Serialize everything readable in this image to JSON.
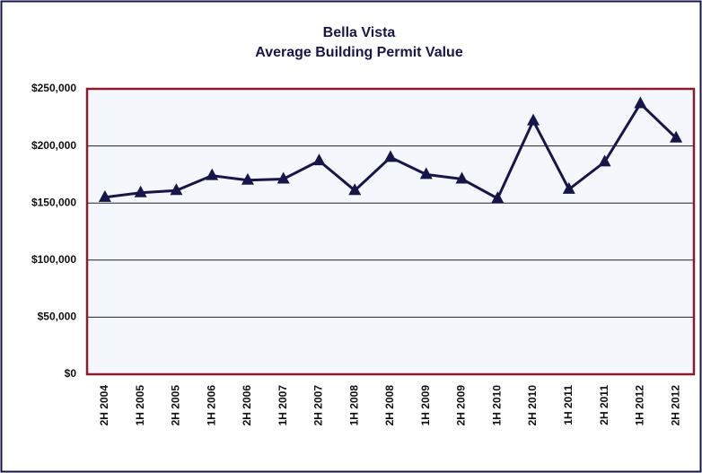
{
  "chart_data": {
    "type": "line",
    "title": [
      "Bella Vista",
      "Average Building Permit Value"
    ],
    "categories": [
      "2H 2004",
      "1H 2005",
      "2H 2005",
      "1H 2006",
      "2H 2006",
      "1H 2007",
      "2H 2007",
      "1H 2008",
      "2H 2008",
      "1H 2009",
      "2H 2009",
      "1H 2010",
      "2H 2010",
      "1H 2011",
      "2H 2011",
      "1H 2012",
      "2H 2012"
    ],
    "series": [
      {
        "name": "Average Building Permit Value",
        "color": "#16164a",
        "values": [
          155000,
          159000,
          161000,
          174000,
          170000,
          171000,
          187000,
          161000,
          190000,
          175000,
          171000,
          154000,
          222000,
          162000,
          186000,
          237000,
          207000
        ]
      }
    ],
    "ylim": [
      0,
      250000
    ],
    "yticks": [
      {
        "value": 0,
        "label": "$0"
      },
      {
        "value": 50000,
        "label": "$50,000"
      },
      {
        "value": 100000,
        "label": "$100,000"
      },
      {
        "value": 150000,
        "label": "$150,000"
      },
      {
        "value": 200000,
        "label": "$200,000"
      },
      {
        "value": 250000,
        "label": "$250,000"
      }
    ],
    "grid": true
  }
}
